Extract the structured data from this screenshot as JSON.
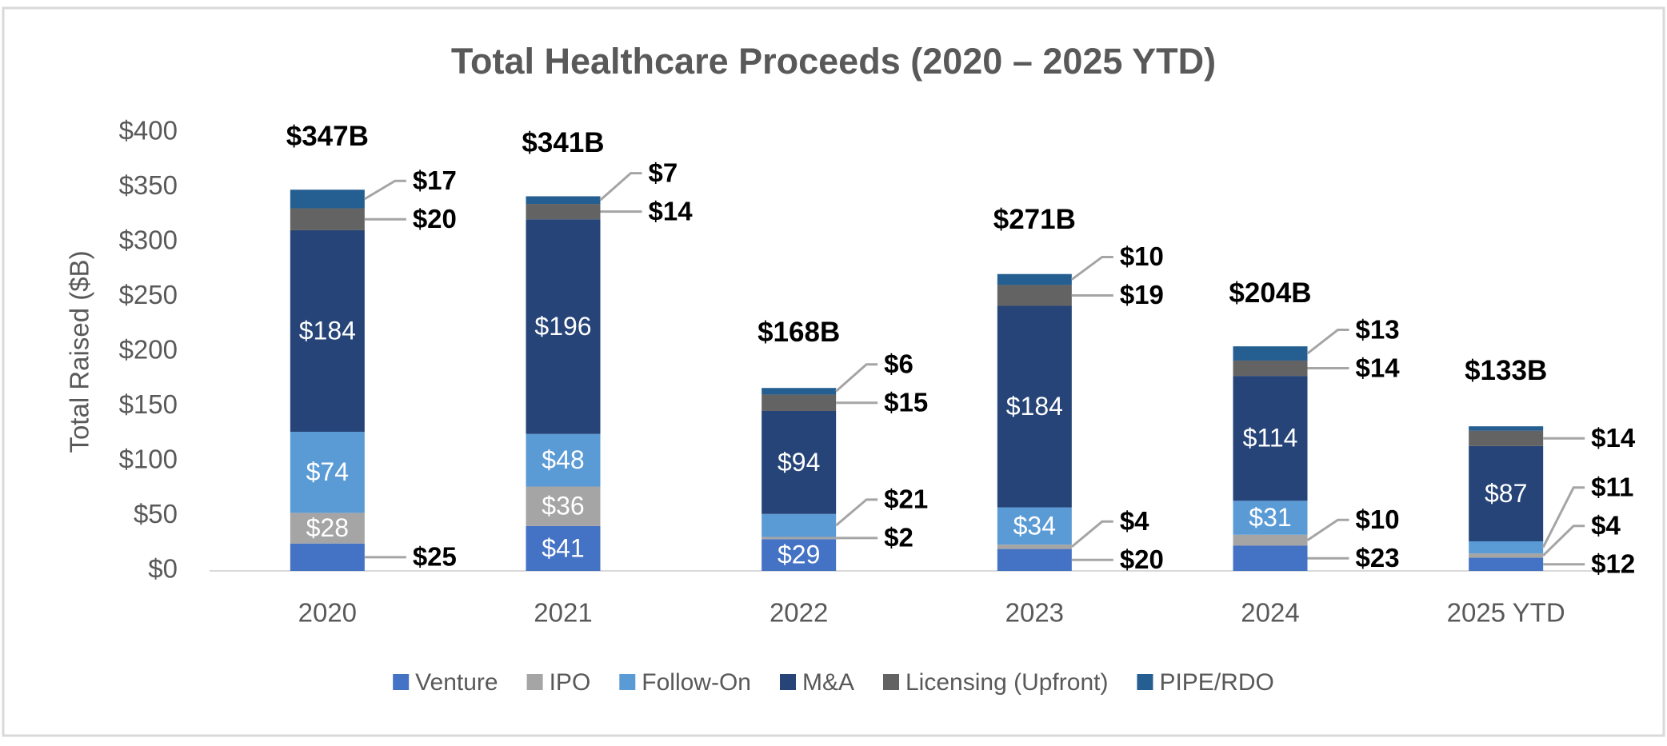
{
  "chart_data": {
    "type": "stacked_bar",
    "title": "Total Healthcare Proceeds (2020 – 2025 YTD)",
    "y_label": "Total Raised ($B)",
    "categories": [
      "2020",
      "2021",
      "2022",
      "2023",
      "2024",
      "2025 YTD"
    ],
    "series": [
      {
        "name": "Venture",
        "color": "#4472c4",
        "values": [
          25,
          41,
          29,
          20,
          23,
          12
        ],
        "value_labels": [
          "$25",
          "$41",
          "$29",
          "$20",
          "$23",
          "$12"
        ]
      },
      {
        "name": "IPO",
        "color": "#a5a5a5",
        "values": [
          28,
          36,
          2,
          4,
          10,
          4
        ],
        "value_labels": [
          "$28",
          "$36",
          "$2",
          "$4",
          "$10",
          "$4"
        ]
      },
      {
        "name": "Follow-On",
        "color": "#5b9bd5",
        "values": [
          74,
          48,
          21,
          34,
          31,
          11
        ],
        "value_labels": [
          "$74",
          "$48",
          "$21",
          "$34",
          "$31",
          "$11"
        ]
      },
      {
        "name": "M&A",
        "color": "#264478",
        "values": [
          184,
          196,
          94,
          184,
          114,
          87
        ],
        "value_labels": [
          "$184",
          "$196",
          "$94",
          "$184",
          "$114",
          "$87"
        ]
      },
      {
        "name": "Licensing (Upfront)",
        "color": "#636363",
        "values": [
          20,
          14,
          15,
          19,
          14,
          14
        ],
        "value_labels": [
          "$20",
          "$14",
          "$15",
          "$19",
          "$14",
          "$14"
        ]
      },
      {
        "name": "PIPE/RDO",
        "color": "#255e91",
        "values": [
          17,
          7,
          6,
          10,
          13,
          4
        ],
        "value_labels": [
          "$17",
          "$7",
          "$6",
          "$10",
          "$13",
          null
        ]
      }
    ],
    "totals": {
      "values": [
        347,
        341,
        168,
        271,
        204,
        133
      ],
      "value_labels": [
        "$347B",
        "$341B",
        "$168B",
        "$271B",
        "$204B",
        "$133B"
      ]
    },
    "ylim": [
      0,
      400
    ],
    "yticks": [
      {
        "value": 0,
        "label": "$0"
      },
      {
        "value": 50,
        "label": "$50"
      },
      {
        "value": 100,
        "label": "$100"
      },
      {
        "value": 150,
        "label": "$150"
      },
      {
        "value": 200,
        "label": "$200"
      },
      {
        "value": 250,
        "label": "$250"
      },
      {
        "value": 300,
        "label": "$300"
      },
      {
        "value": 350,
        "label": "$350"
      },
      {
        "value": 400,
        "label": "$400"
      }
    ],
    "grid": false,
    "legend": "bottom"
  }
}
